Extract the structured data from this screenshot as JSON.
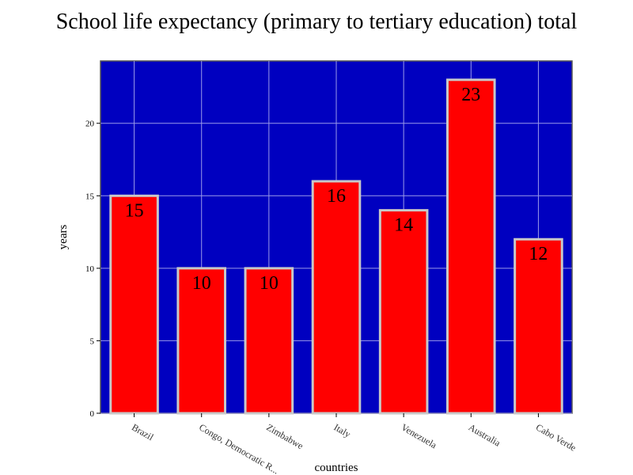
{
  "chart_data": {
    "type": "bar",
    "title": "School life expectancy (primary to tertiary education) total",
    "xlabel": "countries",
    "ylabel": "years",
    "categories": [
      "Brazil",
      "Congo, Democratic R...",
      "Zimbabwe",
      "Italy",
      "Venezuela",
      "Australia",
      "Cabo Verde"
    ],
    "values": [
      15,
      10,
      10,
      16,
      14,
      23,
      12
    ],
    "data_labels": [
      "15",
      "10",
      "10",
      "16",
      "14",
      "23",
      "12"
    ],
    "ylim": [
      0,
      24.3
    ],
    "yticks": [
      0,
      5,
      10,
      15,
      20
    ],
    "ytick_labels": [
      "0",
      "5",
      "10",
      "15",
      "20"
    ],
    "grid": true,
    "legend": "none",
    "colors": {
      "plot_background": "#0000c0",
      "bar_fill": "#ff0000",
      "bar_stroke": "#c8c8c8",
      "grid": "#9a9ae8"
    }
  }
}
